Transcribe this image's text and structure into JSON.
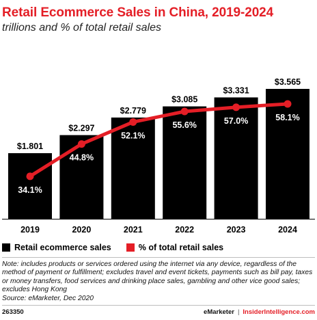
{
  "header": {
    "title": "Retail Ecommerce Sales in China, 2019-2024",
    "subtitle": "trillions and % of total retail sales"
  },
  "chart_data": {
    "type": "bar",
    "title": "Retail Ecommerce Sales in China, 2019-2024",
    "subtitle": "trillions and % of total retail sales",
    "categories": [
      "2019",
      "2020",
      "2021",
      "2022",
      "2023",
      "2024"
    ],
    "series": [
      {
        "name": "Retail ecommerce sales",
        "type": "bar",
        "color": "#000000",
        "values": [
          1.801,
          2.297,
          2.779,
          3.085,
          3.331,
          3.565
        ],
        "labels": [
          "$1.801",
          "$2.297",
          "$2.779",
          "$3.085",
          "$3.331",
          "$3.565"
        ]
      },
      {
        "name": "% of total retail sales",
        "type": "line",
        "color": "#e41e26",
        "values": [
          34.1,
          44.8,
          52.1,
          55.6,
          57.0,
          58.1
        ],
        "labels": [
          "34.1%",
          "44.8%",
          "52.1%",
          "55.6%",
          "57.0%",
          "58.1%"
        ]
      }
    ],
    "legend_position": "bottom-left",
    "grid": false
  },
  "legend": {
    "bars_label": "Retail ecommerce sales",
    "line_label": "% of total retail sales"
  },
  "note": "Note: includes products or services ordered using the internet via any device, regardless of the method of payment or fulfillment; excludes travel and event tickets, payments such as bill pay, taxes or money transfers, food services and drinking place sales, gambling and other vice good sales; excludes Hong Kong",
  "source": "Source: eMarketer, Dec 2020",
  "footer": {
    "id": "263350",
    "brand_left": "eMarketer",
    "separator": "|",
    "brand_right": "InsiderIntelligence.com"
  },
  "colors": {
    "accent": "#e41e26",
    "bar": "#000000"
  }
}
